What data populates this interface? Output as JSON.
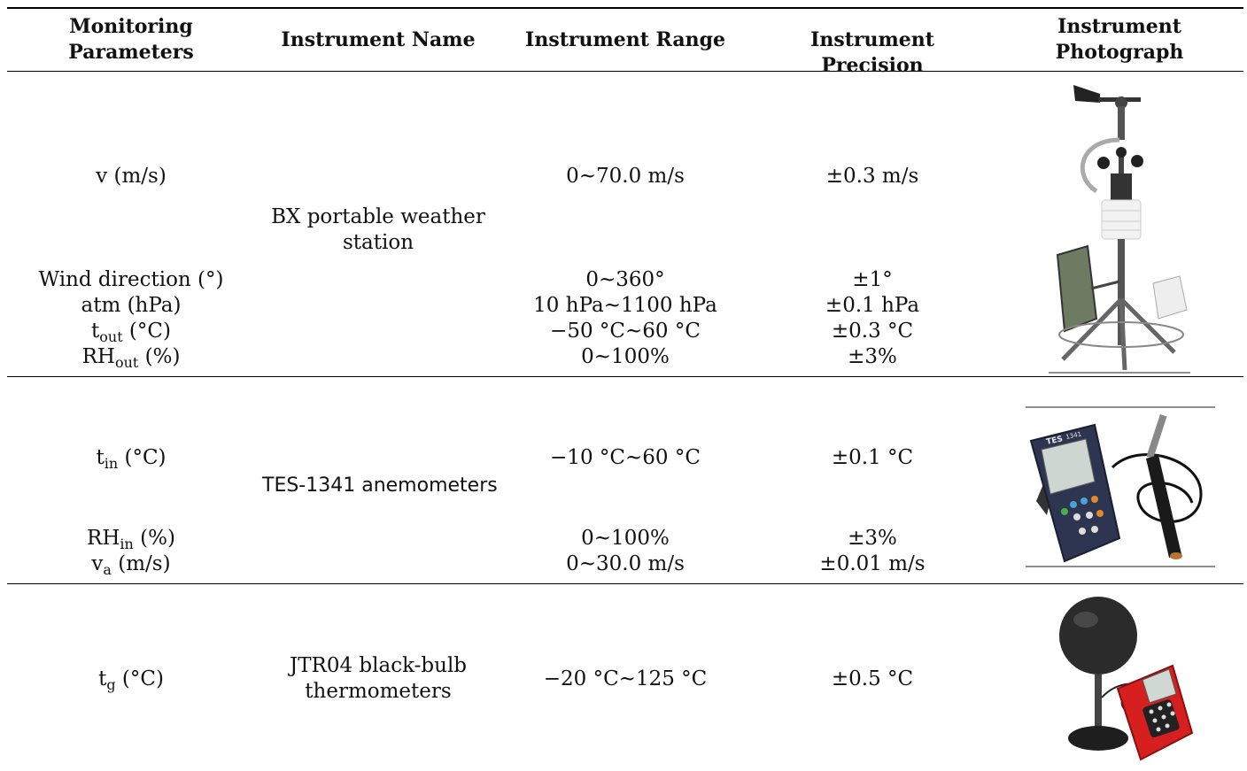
{
  "table": {
    "headers": [
      {
        "line1": "Monitoring",
        "line2": "Parameters"
      },
      {
        "text": "Instrument Name"
      },
      {
        "text": "Instrument Range"
      },
      {
        "text": "Instrument Precision"
      },
      {
        "line1": "Instrument",
        "line2": "Photograph"
      }
    ],
    "group1": {
      "instrument_name_line1": "BX portable weather",
      "instrument_name_line2": "station",
      "rows": [
        {
          "param": "v (m/s)",
          "range": "0~70.0 m/s",
          "precision": "±0.3 m/s"
        },
        {
          "param": "Wind direction (°)",
          "range": "0~360°",
          "precision": "±1°"
        },
        {
          "param": "atm (hPa)",
          "range": "10 hPa~1100 hPa",
          "precision": "±0.1 hPa"
        },
        {
          "param_base": "t",
          "param_sub": "out",
          "param_unit": " (°C)",
          "range": "−50 °C~60 °C",
          "precision": "±0.3 °C"
        },
        {
          "param_base": "RH",
          "param_sub": "out",
          "param_unit": " (%)",
          "range": "0~100%",
          "precision": "±3%"
        }
      ],
      "photo_icon": "weather-station-icon"
    },
    "group2": {
      "instrument_name": "TES-1341 anemometers",
      "rows": [
        {
          "param_base": "t",
          "param_sub": "in",
          "param_unit": " (°C)",
          "range": "−10 °C~60 °C",
          "precision": "±0.1 °C"
        },
        {
          "param_base": "RH",
          "param_sub": "in",
          "param_unit": " (%)",
          "range": "0~100%",
          "precision": "±3%"
        },
        {
          "param_base": "v",
          "param_sub": "a",
          "param_unit": " (m/s)",
          "range": "0~30.0 m/s",
          "precision": "±0.01 m/s"
        }
      ],
      "photo_icon": "anemometer-icon",
      "device_brand": "TES",
      "device_model": "1341"
    },
    "group3": {
      "instrument_name_line1": "JTR04 black-bulb",
      "instrument_name_line2": "thermometers",
      "rows": [
        {
          "param_base": "t",
          "param_sub": "g",
          "param_unit": " (°C)",
          "range": "−20 °C~125 °C",
          "precision": "±0.5 °C"
        }
      ],
      "photo_icon": "black-bulb-thermometer-icon"
    }
  }
}
